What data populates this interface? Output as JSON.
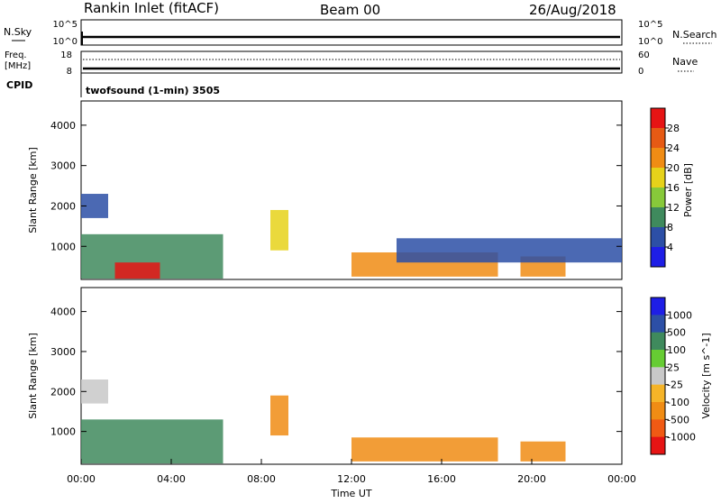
{
  "header": {
    "station": "Rankin Inlet (fitACF)",
    "beam": "Beam 00",
    "date": "26/Aug/2018"
  },
  "sky_panel": {
    "left_label": "N.Sky",
    "left_ticks": [
      "10^5",
      "10^0"
    ],
    "right_ticks": [
      "10^5",
      "10^0"
    ],
    "right_label": "N.Search"
  },
  "freq_panel": {
    "left_label_1": "Freq.",
    "left_label_2": "[MHz]",
    "left_ticks": [
      "18",
      "8"
    ],
    "right_ticks": [
      "60",
      "0"
    ],
    "right_label": "Nave",
    "cpid_label": "CPID",
    "cpid_value": "twofsound (1-min) 3505"
  },
  "colors": {
    "power_scale": [
      "#1e1ee6",
      "#2c4fa6",
      "#3f8a5d",
      "#87c93a",
      "#e6d21a",
      "#f08c14",
      "#e65a14",
      "#e61414"
    ],
    "velocity_scale": [
      "#e61414",
      "#f05a14",
      "#f08c14",
      "#f5b428",
      "#c8c8c8",
      "#66cc33",
      "#3f8a5d",
      "#2c4fa6",
      "#1e1ee6"
    ]
  },
  "chart_data": [
    {
      "type": "heatmap",
      "title": "",
      "ylabel": "Slant Range [km]",
      "xlabel": "",
      "ylim": [
        180,
        4600
      ],
      "yticks": [
        "1000",
        "2000",
        "3000",
        "4000"
      ],
      "xticks": [],
      "colorbar": {
        "label": "Power [dB]",
        "ticks": [
          "4",
          "8",
          "12",
          "16",
          "20",
          "24",
          "28"
        ],
        "range": [
          0,
          32
        ]
      },
      "echo_regions": [
        {
          "t_start": 0.0,
          "t_end": 6.3,
          "range_start": 200,
          "range_end": 1300,
          "power_db": 10
        },
        {
          "t_start": 1.5,
          "t_end": 3.5,
          "range_start": 200,
          "range_end": 600,
          "power_db": 28
        },
        {
          "t_start": 0.0,
          "t_end": 1.2,
          "range_start": 1700,
          "range_end": 2300,
          "power_db": 6
        },
        {
          "t_start": 8.4,
          "t_end": 9.2,
          "range_start": 900,
          "range_end": 1900,
          "power_db": 18
        },
        {
          "t_start": 12.0,
          "t_end": 18.5,
          "range_start": 250,
          "range_end": 850,
          "power_db": 22
        },
        {
          "t_start": 19.5,
          "t_end": 21.5,
          "range_start": 250,
          "range_end": 750,
          "power_db": 20
        },
        {
          "t_start": 14.0,
          "t_end": 24.0,
          "range_start": 600,
          "range_end": 1200,
          "power_db": 7
        }
      ]
    },
    {
      "type": "heatmap",
      "title": "",
      "ylabel": "Slant Range [km]",
      "xlabel": "Time UT",
      "ylim": [
        180,
        4600
      ],
      "yticks": [
        "1000",
        "2000",
        "3000",
        "4000"
      ],
      "xticks": [
        "00:00",
        "04:00",
        "08:00",
        "12:00",
        "16:00",
        "20:00",
        "00:00"
      ],
      "colorbar": {
        "label": "Velocity [m s^-1]",
        "ticks": [
          "1000",
          "500",
          "100",
          "25",
          "-25",
          "-100",
          "-500",
          "-1000"
        ]
      },
      "echo_regions": [
        {
          "t_start": 0.0,
          "t_end": 6.3,
          "range_start": 200,
          "range_end": 1300,
          "velocity": 300
        },
        {
          "t_start": 0.0,
          "t_end": 1.2,
          "range_start": 1700,
          "range_end": 2300,
          "velocity": 0
        },
        {
          "t_start": 8.4,
          "t_end": 9.2,
          "range_start": 900,
          "range_end": 1900,
          "velocity": -150
        },
        {
          "t_start": 12.0,
          "t_end": 18.5,
          "range_start": 250,
          "range_end": 850,
          "velocity": -120
        },
        {
          "t_start": 19.5,
          "t_end": 21.5,
          "range_start": 250,
          "range_end": 750,
          "velocity": -200
        }
      ]
    }
  ]
}
